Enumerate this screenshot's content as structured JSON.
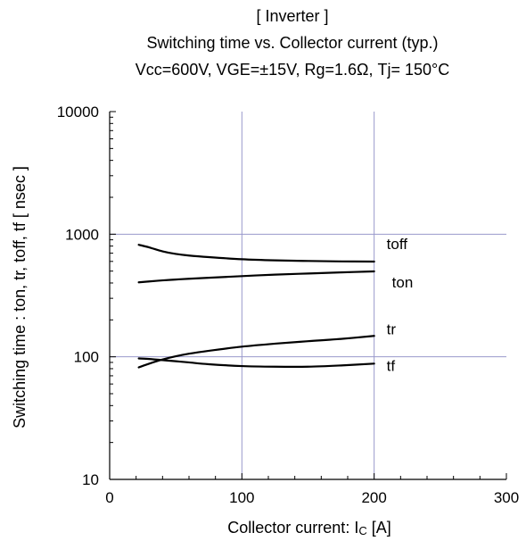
{
  "chart_data": {
    "type": "line",
    "title_lines": [
      "[ Inverter ]",
      "Switching time  vs.  Collector current  (typ.)",
      "Vcc=600V,   VGE=±15V,   Rg=1.6Ω,   Tj= 150°C"
    ],
    "xlabel": "Collector current: I",
    "xlabel_subscript": "C",
    "xlabel_unit": " [A]",
    "ylabel": "Switching time  :  ton, tr, toff, tf  [ nsec ]",
    "xlim": [
      0,
      300
    ],
    "ylim": [
      10,
      10000
    ],
    "y_scale": "log",
    "x_ticks": [
      {
        "value": 0,
        "label": "0"
      },
      {
        "value": 100,
        "label": "100"
      },
      {
        "value": 200,
        "label": "200"
      },
      {
        "value": 300,
        "label": "300"
      }
    ],
    "y_ticks": [
      {
        "value": 10,
        "label": "10"
      },
      {
        "value": 100,
        "label": "100"
      },
      {
        "value": 1000,
        "label": "1000"
      },
      {
        "value": 10000,
        "label": "10000"
      }
    ],
    "grid": true,
    "grid_color": "#9999cc",
    "line_color": "#000000",
    "series": [
      {
        "name": "toff",
        "x": [
          22,
          30,
          40,
          50,
          60,
          75,
          100,
          125,
          150,
          175,
          200
        ],
        "y": [
          820,
          780,
          725,
          690,
          670,
          650,
          625,
          612,
          605,
          600,
          598
        ]
      },
      {
        "name": "ton",
        "x": [
          22,
          30,
          40,
          50,
          60,
          75,
          100,
          125,
          150,
          175,
          200
        ],
        "y": [
          405,
          412,
          420,
          427,
          433,
          441,
          455,
          468,
          478,
          488,
          497
        ]
      },
      {
        "name": "tr",
        "x": [
          22,
          30,
          40,
          50,
          60,
          75,
          100,
          125,
          150,
          175,
          200
        ],
        "y": [
          82,
          88,
          95,
          101,
          106,
          112,
          121,
          128,
          134,
          140,
          148
        ]
      },
      {
        "name": "tf",
        "x": [
          22,
          30,
          40,
          50,
          60,
          75,
          100,
          125,
          150,
          175,
          200
        ],
        "y": [
          97,
          96,
          94,
          92,
          90,
          87,
          84,
          83,
          83,
          85,
          88
        ]
      }
    ]
  }
}
